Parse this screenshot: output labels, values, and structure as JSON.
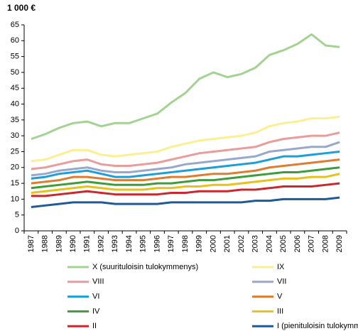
{
  "chart_data": {
    "type": "line",
    "y_label": "1 000 €",
    "x": [
      "1987",
      "1988",
      "1989",
      "1990",
      "1991",
      "1992",
      "1993",
      "1994",
      "1995",
      "1996",
      "1997",
      "1998",
      "1999",
      "2000",
      "2001",
      "2002",
      "2003",
      "2004",
      "2005",
      "2006",
      "2007",
      "2008",
      "2009"
    ],
    "ylim": [
      0,
      65
    ],
    "yticks": [
      0,
      5,
      10,
      15,
      20,
      25,
      30,
      35,
      40,
      45,
      50,
      55,
      60,
      65
    ],
    "series": [
      {
        "name": "X (suurituloisin tulokymmenys)",
        "color": "#a3d393",
        "values": [
          29,
          30.5,
          32.5,
          34,
          34.5,
          33,
          34,
          34,
          35.5,
          37,
          40.5,
          43.5,
          48,
          50,
          48.5,
          49.5,
          51.5,
          55.5,
          57,
          59,
          62,
          58.5,
          58
        ]
      },
      {
        "name": "IX",
        "color": "#fbef91",
        "values": [
          22,
          22.5,
          24,
          25.5,
          25.5,
          24,
          23.5,
          24,
          24.5,
          25,
          26.5,
          27.5,
          28.5,
          29,
          29.5,
          30,
          31,
          33,
          34,
          34.5,
          35.5,
          35.5,
          36
        ]
      },
      {
        "name": "VIII",
        "color": "#e99c9a",
        "values": [
          19.5,
          20,
          21,
          22,
          22.5,
          21,
          20.5,
          20.5,
          21,
          21.5,
          22.5,
          23.5,
          24.5,
          25,
          25.5,
          26,
          26.5,
          28,
          29,
          29.5,
          30,
          30,
          31
        ]
      },
      {
        "name": "VII",
        "color": "#98a8cc",
        "values": [
          17.5,
          18,
          19,
          19.5,
          20,
          19,
          18.5,
          18.5,
          19,
          19.5,
          20,
          21,
          21.5,
          22,
          22.5,
          23,
          23.5,
          25,
          25.5,
          26,
          26.5,
          26.5,
          28
        ]
      },
      {
        "name": "VI",
        "color": "#1c9fd9",
        "values": [
          16.5,
          17,
          18,
          18.5,
          19,
          18,
          17,
          17,
          17.5,
          18,
          18.5,
          19,
          19.5,
          20,
          20.5,
          21,
          21.5,
          22.5,
          23.5,
          23.5,
          24,
          24.5,
          25
        ]
      },
      {
        "name": "V",
        "color": "#df7d2f",
        "values": [
          15,
          15.5,
          16,
          17,
          17,
          16.5,
          16,
          16,
          16,
          16.5,
          17,
          17,
          17.5,
          18,
          18,
          18.5,
          19,
          20,
          20.5,
          21,
          21.5,
          22,
          22.5
        ]
      },
      {
        "name": "IV",
        "color": "#3e9d3a",
        "values": [
          13.5,
          14,
          14.5,
          15,
          15.5,
          15,
          14.5,
          14.5,
          14.5,
          15,
          15,
          15.5,
          16,
          16,
          16.5,
          17,
          17.5,
          18,
          18.5,
          18.5,
          19,
          19.5,
          20
        ]
      },
      {
        "name": "III",
        "color": "#e7c21b",
        "values": [
          12,
          12.5,
          13,
          13.5,
          14,
          13.5,
          13,
          13,
          13,
          13.5,
          13.5,
          14,
          14,
          14.5,
          14.5,
          15,
          15.5,
          16,
          16.5,
          16.5,
          17,
          17,
          18
        ]
      },
      {
        "name": "II",
        "color": "#c8282e",
        "values": [
          11,
          11,
          11.5,
          12,
          12.5,
          12,
          11.5,
          11.5,
          11.5,
          11.5,
          12,
          12,
          12.5,
          12.5,
          12.5,
          13,
          13,
          13.5,
          14,
          14,
          14,
          14.5,
          15
        ]
      },
      {
        "name": "I (pienituloisin tulokymmenys)",
        "color": "#1f5a96",
        "values": [
          7.5,
          8,
          8.5,
          9,
          9,
          9,
          8.5,
          8.5,
          8.5,
          8.5,
          9,
          9,
          9,
          9,
          9,
          9,
          9.5,
          9.5,
          10,
          10,
          10,
          10,
          10.5
        ]
      }
    ]
  }
}
